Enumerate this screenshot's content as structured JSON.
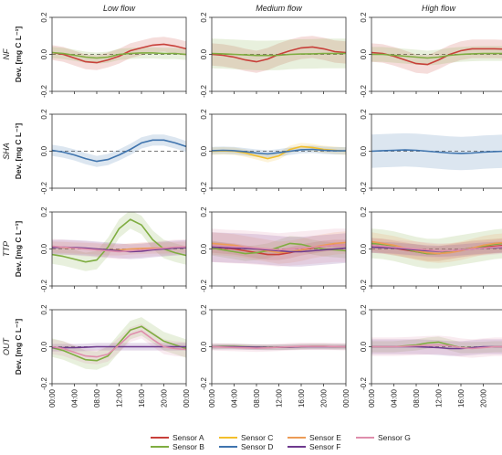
{
  "chart_data": {
    "type": "line",
    "columns": [
      "Low flow",
      "Medium flow",
      "High flow"
    ],
    "rows": [
      "NF",
      "SHA",
      "TTP",
      "OUT"
    ],
    "ylabel": "Dev. [mg C L⁻¹]",
    "ylim": [
      -0.2,
      0.2
    ],
    "yticks": [
      "-0.2",
      "0.0",
      "0.2"
    ],
    "xticks": [
      "00:00",
      "04:00",
      "08:00",
      "12:00",
      "16:00",
      "20:00",
      "00:00"
    ],
    "xlim": [
      0,
      24
    ],
    "sensors": [
      {
        "name": "Sensor A",
        "color": "#c8403a"
      },
      {
        "name": "Sensor B",
        "color": "#7fad41"
      },
      {
        "name": "Sensor C",
        "color": "#f3bf2c"
      },
      {
        "name": "Sensor D",
        "color": "#3f74ae"
      },
      {
        "name": "Sensor E",
        "color": "#ec9b56"
      },
      {
        "name": "Sensor F",
        "color": "#6e3a8e"
      },
      {
        "name": "Sensor G",
        "color": "#df8eac"
      }
    ],
    "x": [
      0,
      2,
      4,
      6,
      8,
      10,
      12,
      14,
      16,
      18,
      20,
      22,
      24
    ],
    "panels": [
      {
        "row": "NF",
        "col": "Low flow",
        "series": [
          {
            "name": "Sensor A",
            "values": [
              0.01,
              0,
              -0.02,
              -0.04,
              -0.045,
              -0.03,
              -0.01,
              0.02,
              0.035,
              0.05,
              0.055,
              0.045,
              0.03
            ],
            "band": 0.04
          },
          {
            "name": "Sensor B",
            "values": [
              0.01,
              0.005,
              -0.005,
              -0.015,
              -0.02,
              -0.015,
              0,
              0.005,
              0.008,
              0.008,
              0.005,
              0.005,
              0
            ],
            "band": 0.03
          }
        ]
      },
      {
        "row": "NF",
        "col": "Medium flow",
        "series": [
          {
            "name": "Sensor A",
            "values": [
              0,
              -0.005,
              -0.015,
              -0.03,
              -0.04,
              -0.025,
              0,
              0.02,
              0.035,
              0.04,
              0.03,
              0.015,
              0.01
            ],
            "band": 0.06
          },
          {
            "name": "Sensor B",
            "values": [
              0.005,
              0.003,
              0,
              -0.003,
              -0.006,
              -0.006,
              -0.005,
              0,
              0.002,
              0.003,
              0.005,
              0.005,
              0.005
            ],
            "band": 0.08
          }
        ]
      },
      {
        "row": "NF",
        "col": "High flow",
        "series": [
          {
            "name": "Sensor A",
            "values": [
              0.01,
              0.005,
              -0.01,
              -0.03,
              -0.05,
              -0.055,
              -0.03,
              0,
              0.02,
              0.03,
              0.03,
              0.03,
              0.028
            ],
            "band": 0.05
          },
          {
            "name": "Sensor B",
            "values": [
              0,
              0,
              -0.005,
              -0.01,
              -0.015,
              -0.02,
              -0.015,
              -0.005,
              0,
              0.003,
              0.005,
              0.005,
              0.005
            ],
            "band": 0.04
          }
        ]
      },
      {
        "row": "SHA",
        "col": "Low flow",
        "series": [
          {
            "name": "Sensor D",
            "values": [
              0.005,
              -0.005,
              -0.02,
              -0.04,
              -0.055,
              -0.045,
              -0.02,
              0.01,
              0.045,
              0.06,
              0.06,
              0.045,
              0.025
            ],
            "band": 0.03
          }
        ]
      },
      {
        "row": "SHA",
        "col": "Medium flow",
        "series": [
          {
            "name": "Sensor C",
            "values": [
              0,
              0.002,
              0,
              -0.01,
              -0.025,
              -0.04,
              -0.025,
              0.01,
              0.025,
              0.02,
              0.01,
              0.005,
              0
            ],
            "band": 0.02
          },
          {
            "name": "Sensor D",
            "values": [
              0.003,
              0.005,
              0.003,
              -0.003,
              -0.01,
              -0.015,
              -0.008,
              0,
              0.008,
              0.01,
              0.005,
              0.002,
              0.002
            ],
            "band": 0.02
          }
        ]
      },
      {
        "row": "SHA",
        "col": "High flow",
        "series": [
          {
            "name": "Sensor D",
            "values": [
              0,
              0.003,
              0.005,
              0.007,
              0.005,
              0,
              -0.005,
              -0.01,
              -0.012,
              -0.01,
              -0.005,
              -0.002,
              0
            ],
            "band": 0.09
          }
        ]
      },
      {
        "row": "TTP",
        "col": "Low flow",
        "series": [
          {
            "name": "Sensor B",
            "values": [
              -0.03,
              -0.04,
              -0.055,
              -0.07,
              -0.06,
              0.01,
              0.11,
              0.16,
              0.13,
              0.05,
              0,
              -0.02,
              -0.035
            ],
            "band": 0.05
          },
          {
            "name": "Sensor E",
            "values": [
              0.01,
              0.008,
              0.005,
              0.003,
              0,
              -0.005,
              -0.005,
              0,
              0.003,
              0.005,
              0.005,
              0.008,
              0.01
            ],
            "band": 0.03
          },
          {
            "name": "Sensor F",
            "values": [
              0.008,
              0.01,
              0.008,
              0.005,
              0,
              -0.005,
              -0.01,
              -0.015,
              -0.012,
              -0.005,
              0,
              0.005,
              0.008
            ],
            "band": 0.04
          },
          {
            "name": "Sensor G",
            "values": [
              0.015,
              0.01,
              0.005,
              0,
              -0.005,
              -0.01,
              -0.015,
              -0.01,
              -0.005,
              0,
              0.005,
              0.01,
              0.012
            ],
            "band": 0.04
          }
        ]
      },
      {
        "row": "TTP",
        "col": "Medium flow",
        "series": [
          {
            "name": "Sensor A",
            "values": [
              0.01,
              0.005,
              0,
              -0.01,
              -0.02,
              -0.03,
              -0.03,
              -0.02,
              -0.005,
              0.005,
              0.015,
              0.02,
              0.02
            ],
            "band": 0.03
          },
          {
            "name": "Sensor B",
            "values": [
              0.005,
              -0.005,
              -0.015,
              -0.025,
              -0.02,
              -0.01,
              0.01,
              0.03,
              0.025,
              0.01,
              0,
              -0.005,
              -0.01
            ],
            "band": 0.04
          },
          {
            "name": "Sensor E",
            "values": [
              0.03,
              0.025,
              0.02,
              0.01,
              0,
              -0.01,
              -0.02,
              -0.015,
              -0.005,
              0.01,
              0.02,
              0.03,
              0.035
            ],
            "band": 0.06
          },
          {
            "name": "Sensor F",
            "values": [
              0.01,
              0.008,
              0.005,
              0.003,
              0,
              -0.005,
              -0.01,
              -0.015,
              -0.015,
              -0.01,
              -0.005,
              0,
              0.005
            ],
            "band": 0.08
          },
          {
            "name": "Sensor G",
            "values": [
              0.02,
              0.015,
              0.012,
              0.01,
              0.005,
              0,
              -0.005,
              0,
              0.005,
              0.01,
              0.015,
              0.02,
              0.02
            ],
            "band": 0.09
          }
        ]
      },
      {
        "row": "TTP",
        "col": "High flow",
        "series": [
          {
            "name": "Sensor A",
            "values": [
              0.02,
              0.015,
              0.005,
              -0.005,
              -0.015,
              -0.025,
              -0.025,
              -0.015,
              -0.005,
              0.005,
              0.01,
              0.015,
              0.02
            ],
            "band": 0.04
          },
          {
            "name": "Sensor B",
            "values": [
              0.03,
              0.025,
              0.015,
              0,
              -0.015,
              -0.025,
              -0.025,
              -0.015,
              -0.005,
              0.005,
              0.015,
              0.025,
              0.03
            ],
            "band": 0.08
          },
          {
            "name": "Sensor E",
            "values": [
              0.04,
              0.03,
              0.02,
              0.005,
              -0.01,
              -0.02,
              -0.025,
              -0.02,
              -0.01,
              0.005,
              0.02,
              0.03,
              0.035
            ],
            "band": 0.05
          },
          {
            "name": "Sensor F",
            "values": [
              0.01,
              0.008,
              0.005,
              0,
              -0.005,
              -0.01,
              -0.012,
              -0.01,
              -0.005,
              0,
              0.005,
              0.008,
              0.01
            ],
            "band": 0.03
          },
          {
            "name": "Sensor G",
            "values": [
              0.02,
              0.015,
              0.01,
              0.005,
              0,
              -0.005,
              -0.01,
              -0.01,
              -0.005,
              0,
              0.005,
              0.01,
              0.015
            ],
            "band": 0.04
          }
        ]
      },
      {
        "row": "OUT",
        "col": "Low flow",
        "series": [
          {
            "name": "Sensor B",
            "values": [
              -0.005,
              -0.02,
              -0.045,
              -0.07,
              -0.075,
              -0.05,
              0.02,
              0.09,
              0.11,
              0.07,
              0.03,
              0.01,
              -0.01
            ],
            "band": 0.05
          },
          {
            "name": "Sensor F",
            "values": [
              -0.005,
              -0.005,
              -0.005,
              -0.003,
              0,
              0,
              0,
              0,
              0,
              0,
              0,
              0,
              0
            ],
            "band": 0.02
          },
          {
            "name": "Sensor G",
            "values": [
              0,
              -0.01,
              -0.03,
              -0.05,
              -0.055,
              -0.04,
              0.01,
              0.065,
              0.085,
              0.04,
              0,
              -0.01,
              -0.015
            ],
            "band": 0.04
          }
        ]
      },
      {
        "row": "OUT",
        "col": "Medium flow",
        "series": [
          {
            "name": "Sensor B",
            "values": [
              0,
              0.002,
              0.002,
              0,
              -0.002,
              -0.003,
              -0.003,
              -0.002,
              0,
              0.002,
              0.002,
              0,
              0
            ],
            "band": 0.015
          },
          {
            "name": "Sensor F",
            "values": [
              0,
              0,
              0,
              -0.002,
              -0.003,
              -0.004,
              -0.003,
              -0.002,
              0,
              0,
              0,
              0,
              0
            ],
            "band": 0.015
          },
          {
            "name": "Sensor G",
            "values": [
              0,
              -0.002,
              -0.004,
              -0.006,
              -0.008,
              -0.006,
              -0.003,
              0,
              0.002,
              0.002,
              0.002,
              0.001,
              0
            ],
            "band": 0.02
          }
        ]
      },
      {
        "row": "OUT",
        "col": "High flow",
        "series": [
          {
            "name": "Sensor B",
            "values": [
              0,
              0,
              0,
              0.005,
              0.01,
              0.02,
              0.025,
              0.01,
              -0.005,
              -0.005,
              -0.003,
              0,
              0
            ],
            "band": 0.03
          },
          {
            "name": "Sensor F",
            "values": [
              0,
              0,
              0,
              0,
              0,
              -0.002,
              -0.005,
              -0.01,
              -0.01,
              -0.005,
              0,
              0,
              0
            ],
            "band": 0.04
          },
          {
            "name": "Sensor G",
            "values": [
              0,
              0,
              0,
              0.002,
              0.005,
              0.008,
              0.01,
              0.005,
              -0.005,
              -0.01,
              -0.005,
              0,
              0
            ],
            "band": 0.05
          }
        ]
      }
    ]
  }
}
